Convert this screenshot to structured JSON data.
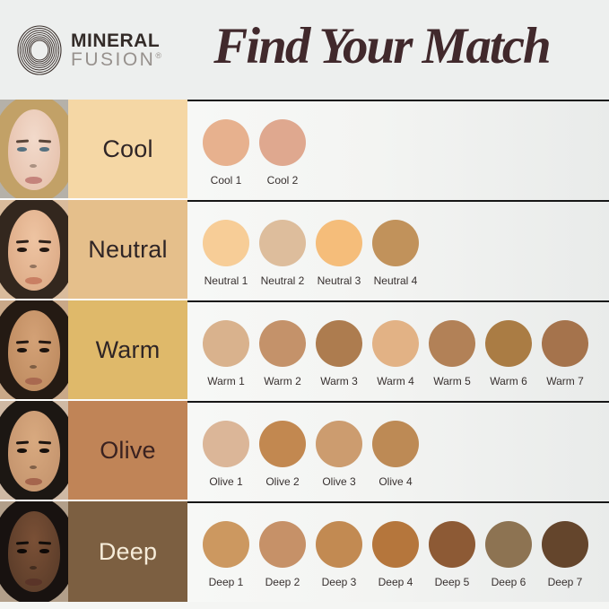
{
  "page": {
    "background": "#edefee",
    "divider_color": "#161616"
  },
  "header": {
    "logo": {
      "line1": "MINERAL",
      "line2": "FUSION",
      "registered": "®",
      "icon": "concentric-rings",
      "ring_color": "#3a2f2b"
    },
    "title": "Find Your Match",
    "title_color": "#41292c"
  },
  "chart_data": {
    "type": "table",
    "title": "Find Your Match",
    "categories": [
      "Cool",
      "Neutral",
      "Warm",
      "Olive",
      "Deep"
    ],
    "series": [
      {
        "name": "Cool",
        "values": [
          "Cool 1",
          "Cool 2"
        ]
      },
      {
        "name": "Neutral",
        "values": [
          "Neutral 1",
          "Neutral 2",
          "Neutral 3",
          "Neutral 4"
        ]
      },
      {
        "name": "Warm",
        "values": [
          "Warm 1",
          "Warm 2",
          "Warm 3",
          "Warm 4",
          "Warm 5",
          "Warm 6",
          "Warm 7"
        ]
      },
      {
        "name": "Olive",
        "values": [
          "Olive 1",
          "Olive 2",
          "Olive 3",
          "Olive 4"
        ]
      },
      {
        "name": "Deep",
        "values": [
          "Deep 1",
          "Deep 2",
          "Deep 3",
          "Deep 4",
          "Deep 5",
          "Deep 6",
          "Deep 7"
        ]
      }
    ]
  },
  "rows": [
    {
      "name": "Cool",
      "label_bg": "#f5d7a5",
      "label_color": "#2f2526",
      "photo": {
        "bg": "#b5b1a9",
        "hair": "#c2a167",
        "skin_light": "#f2dacb",
        "skin": "#e8c5b1",
        "feature": "#5a463a",
        "eye": "#55707f",
        "lip": "#c4837b"
      },
      "swatches": [
        {
          "label": "Cool 1",
          "color": "#e7b18e"
        },
        {
          "label": "Cool 2",
          "color": "#dfa88f"
        }
      ]
    },
    {
      "name": "Neutral",
      "label_bg": "#e5bf8b",
      "label_color": "#2f2526",
      "photo": {
        "bg": "#d9bb9c",
        "hair": "#33271e",
        "skin_light": "#eec4a2",
        "skin": "#dfae8a",
        "feature": "#2e211a",
        "eye": "#241812",
        "lip": "#c97f63"
      },
      "swatches": [
        {
          "label": "Neutral 1",
          "color": "#f7cd97"
        },
        {
          "label": "Neutral 2",
          "color": "#ddbd9c"
        },
        {
          "label": "Neutral 3",
          "color": "#f5bd7a"
        },
        {
          "label": "Neutral 4",
          "color": "#c1925b"
        }
      ]
    },
    {
      "name": "Warm",
      "label_bg": "#dfb96a",
      "label_color": "#2f2526",
      "photo": {
        "bg": "#c9a888",
        "hair": "#241a13",
        "skin_light": "#d3a176",
        "skin": "#c18e63",
        "feature": "#241812",
        "eye": "#1c130e",
        "lip": "#a96950"
      },
      "swatches": [
        {
          "label": "Warm 1",
          "color": "#d9b28d"
        },
        {
          "label": "Warm 2",
          "color": "#c4926a"
        },
        {
          "label": "Warm 3",
          "color": "#ad7c4f"
        },
        {
          "label": "Warm 4",
          "color": "#e2b285"
        },
        {
          "label": "Warm 5",
          "color": "#b28157"
        },
        {
          "label": "Warm 6",
          "color": "#aa7c44"
        },
        {
          "label": "Warm 7",
          "color": "#a5734c"
        }
      ]
    },
    {
      "name": "Olive",
      "label_bg": "#c08457",
      "label_color": "#3a2220",
      "photo": {
        "bg": "#cfb9a4",
        "hair": "#1c1713",
        "skin_light": "#d8a97f",
        "skin": "#c79770",
        "feature": "#1e1510",
        "eye": "#17100c",
        "lip": "#a5654d"
      },
      "swatches": [
        {
          "label": "Olive 1",
          "color": "#dbb698"
        },
        {
          "label": "Olive 2",
          "color": "#c28850"
        },
        {
          "label": "Olive 3",
          "color": "#cc9c6f"
        },
        {
          "label": "Olive 4",
          "color": "#bd8a55"
        }
      ]
    },
    {
      "name": "Deep",
      "label_bg": "#7c5f41",
      "label_color": "#f6ecd9",
      "photo": {
        "bg": "#b29f8a",
        "hair": "#181210",
        "skin_light": "#7a5036",
        "skin": "#5f3f2b",
        "feature": "#120d0a",
        "eye": "#0e0907",
        "lip": "#5a3428"
      },
      "swatches": [
        {
          "label": "Deep 1",
          "color": "#cc9860"
        },
        {
          "label": "Deep 2",
          "color": "#c69168"
        },
        {
          "label": "Deep 3",
          "color": "#c28a52"
        },
        {
          "label": "Deep 4",
          "color": "#b5763c"
        },
        {
          "label": "Deep 5",
          "color": "#8d5a35"
        },
        {
          "label": "Deep 6",
          "color": "#8d7352"
        },
        {
          "label": "Deep 7",
          "color": "#64452c"
        }
      ]
    }
  ]
}
